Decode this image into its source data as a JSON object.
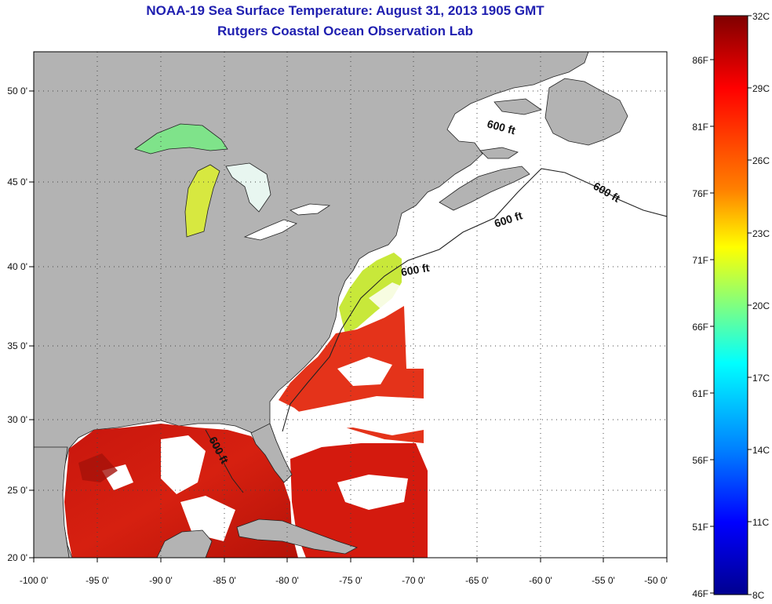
{
  "title": {
    "line1": "NOAA-19 Sea Surface Temperature:  August 31, 2013 1905 GMT",
    "line2": "Rutgers Coastal Ocean Observation Lab"
  },
  "map": {
    "lon_range": [
      -100,
      -50
    ],
    "lat_range": [
      20,
      52
    ],
    "lon_ticks": [
      "-100 0'",
      "-95 0'",
      "-90 0'",
      "-85 0'",
      "-80 0'",
      "-75 0'",
      "-70 0'",
      "-65 0'",
      "-60 0'",
      "-55 0'",
      "-50 0'"
    ],
    "lat_ticks": [
      "20 0'",
      "25 0'",
      "30 0'",
      "35 0'",
      "40 0'",
      "45 0'",
      "50 0'"
    ],
    "contour_labels": [
      "600 ft",
      "600 ft",
      "600 ft",
      "600 ft",
      "600 ft"
    ],
    "colors": {
      "land": "#b3b3b3",
      "cloud": "#ffffff",
      "warm_sst": "#d41a0e",
      "hot_sst": "#a5110a"
    }
  },
  "colorbar": {
    "celsius_labels": [
      "32C",
      "29C",
      "26C",
      "23C",
      "20C",
      "17C",
      "14C",
      "11C",
      "8C"
    ],
    "fahrenheit_labels": [
      "86F",
      "81F",
      "76F",
      "71F",
      "66F",
      "61F",
      "56F",
      "51F",
      "46F"
    ],
    "colors": [
      "#7f0000",
      "#ff0000",
      "#ff8000",
      "#ffff00",
      "#80ff80",
      "#00ffff",
      "#0080ff",
      "#0000ff",
      "#00008f"
    ]
  }
}
